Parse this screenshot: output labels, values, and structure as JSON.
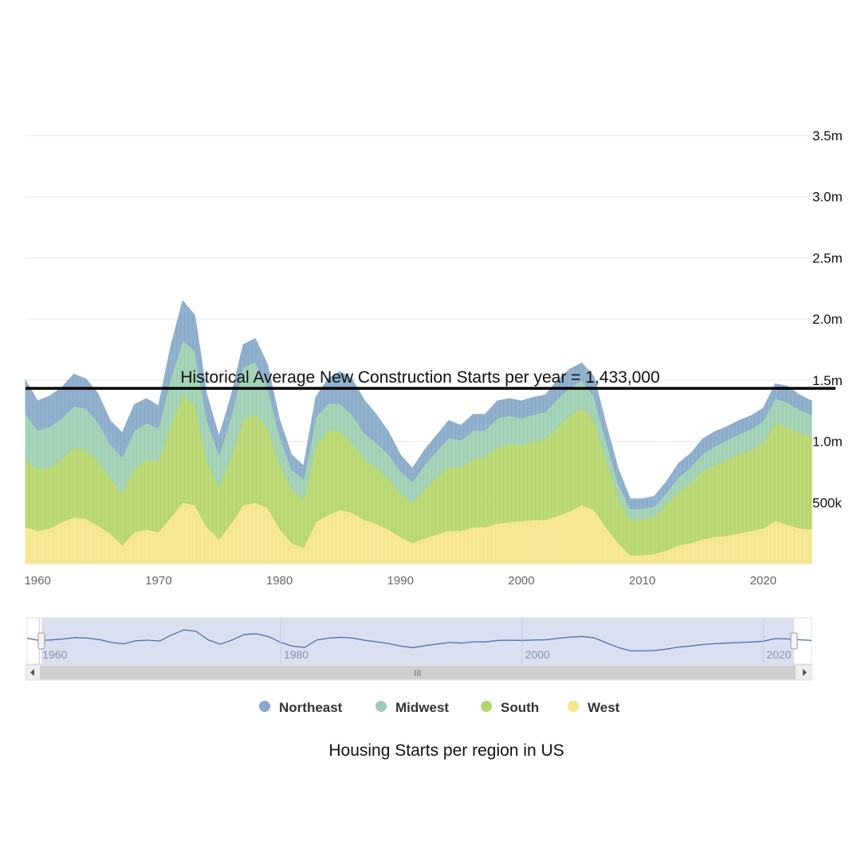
{
  "chart_data": {
    "type": "area",
    "stacked": true,
    "title": "",
    "caption": "Housing Starts per region in US",
    "xlabel": "",
    "ylabel": "",
    "xlim": [
      1959,
      2024
    ],
    "ylim": [
      0,
      3500000
    ],
    "grid": true,
    "legend_position": "bottom",
    "y_ticks": [
      {
        "value": 0,
        "label": ""
      },
      {
        "value": 500000,
        "label": "500k"
      },
      {
        "value": 1000000,
        "label": "1.0m"
      },
      {
        "value": 1500000,
        "label": "1.5m"
      },
      {
        "value": 2000000,
        "label": "2.0m"
      },
      {
        "value": 2500000,
        "label": "2.5m"
      },
      {
        "value": 3000000,
        "label": "3.0m"
      },
      {
        "value": 3500000,
        "label": "3.5m"
      }
    ],
    "x_ticks": [
      "1960",
      "1970",
      "1980",
      "1990",
      "2000",
      "2010",
      "2020"
    ],
    "x": [
      1959,
      1960,
      1961,
      1962,
      1963,
      1964,
      1965,
      1966,
      1967,
      1968,
      1969,
      1970,
      1971,
      1972,
      1973,
      1974,
      1975,
      1976,
      1977,
      1978,
      1979,
      1980,
      1981,
      1982,
      1983,
      1984,
      1985,
      1986,
      1987,
      1988,
      1989,
      1990,
      1991,
      1992,
      1993,
      1994,
      1995,
      1996,
      1997,
      1998,
      1999,
      2000,
      2001,
      2002,
      2003,
      2004,
      2005,
      2006,
      2007,
      2008,
      2009,
      2010,
      2011,
      2012,
      2013,
      2014,
      2015,
      2016,
      2017,
      2018,
      2019,
      2020,
      2021,
      2022,
      2023,
      2024
    ],
    "series": [
      {
        "name": "West",
        "color": "#f6e58d",
        "values": [
          300000,
          270000,
          290000,
          340000,
          380000,
          370000,
          310000,
          250000,
          150000,
          260000,
          280000,
          260000,
          380000,
          500000,
          480000,
          300000,
          200000,
          330000,
          480000,
          500000,
          460000,
          290000,
          170000,
          130000,
          340000,
          400000,
          440000,
          420000,
          360000,
          330000,
          280000,
          220000,
          170000,
          210000,
          240000,
          270000,
          270000,
          300000,
          300000,
          330000,
          340000,
          350000,
          360000,
          360000,
          390000,
          430000,
          480000,
          440000,
          300000,
          170000,
          70000,
          70000,
          80000,
          110000,
          150000,
          170000,
          200000,
          220000,
          230000,
          250000,
          270000,
          290000,
          350000,
          320000,
          290000,
          280000
        ]
      },
      {
        "name": "South",
        "color": "#b5d56a",
        "values": [
          550000,
          500000,
          500000,
          520000,
          570000,
          560000,
          530000,
          450000,
          430000,
          520000,
          570000,
          580000,
          760000,
          880000,
          820000,
          540000,
          430000,
          540000,
          700000,
          720000,
          660000,
          530000,
          440000,
          400000,
          620000,
          690000,
          650000,
          570000,
          500000,
          460000,
          420000,
          360000,
          330000,
          400000,
          470000,
          520000,
          520000,
          560000,
          580000,
          620000,
          640000,
          620000,
          640000,
          660000,
          730000,
          780000,
          800000,
          730000,
          550000,
          370000,
          290000,
          290000,
          310000,
          380000,
          440000,
          490000,
          560000,
          590000,
          620000,
          650000,
          660000,
          700000,
          800000,
          800000,
          780000,
          760000
        ]
      },
      {
        "name": "Midwest",
        "color": "#9ccfb0",
        "values": [
          380000,
          320000,
          330000,
          330000,
          340000,
          340000,
          320000,
          280000,
          290000,
          310000,
          300000,
          270000,
          370000,
          450000,
          440000,
          340000,
          260000,
          330000,
          430000,
          430000,
          330000,
          230000,
          160000,
          160000,
          240000,
          220000,
          220000,
          230000,
          210000,
          200000,
          200000,
          180000,
          170000,
          200000,
          210000,
          240000,
          220000,
          230000,
          210000,
          240000,
          230000,
          220000,
          220000,
          220000,
          230000,
          230000,
          220000,
          200000,
          160000,
          120000,
          90000,
          90000,
          80000,
          90000,
          120000,
          130000,
          140000,
          150000,
          160000,
          160000,
          170000,
          180000,
          200000,
          200000,
          190000,
          180000
        ]
      },
      {
        "name": "Northeast",
        "color": "#86a9c9",
        "values": [
          270000,
          240000,
          250000,
          250000,
          260000,
          240000,
          230000,
          190000,
          200000,
          210000,
          200000,
          180000,
          260000,
          320000,
          290000,
          200000,
          150000,
          170000,
          180000,
          190000,
          180000,
          130000,
          120000,
          110000,
          160000,
          200000,
          260000,
          290000,
          270000,
          230000,
          180000,
          130000,
          110000,
          120000,
          130000,
          140000,
          120000,
          130000,
          130000,
          140000,
          140000,
          140000,
          140000,
          140000,
          150000,
          150000,
          140000,
          160000,
          130000,
          120000,
          80000,
          80000,
          80000,
          90000,
          110000,
          110000,
          120000,
          120000,
          110000,
          110000,
          110000,
          100000,
          120000,
          130000,
          120000,
          110000
        ]
      }
    ],
    "reference_line": {
      "value": 1433000,
      "label": "Historical Average New Construction Starts per year = 1,433,000",
      "color": "#000000"
    },
    "navigator": {
      "x_ticks": [
        "1960",
        "1980",
        "2000",
        "2020"
      ],
      "scroll_grip": "III"
    }
  },
  "legend": {
    "items": [
      {
        "name": "Northeast",
        "color": "#86a9c9"
      },
      {
        "name": "Midwest",
        "color": "#9ccfb0"
      },
      {
        "name": "South",
        "color": "#b5d56a"
      },
      {
        "name": "West",
        "color": "#f6e58d"
      }
    ]
  }
}
